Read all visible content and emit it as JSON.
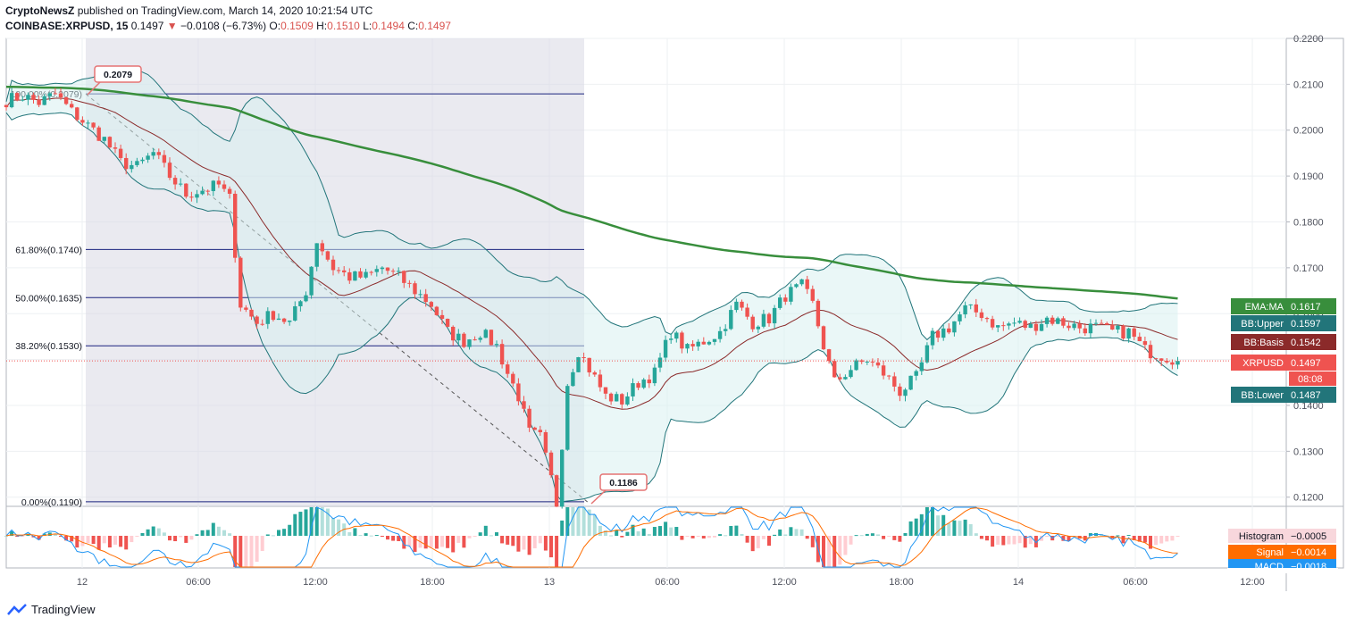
{
  "header": {
    "publisher": "CryptoNewsZ",
    "published_text": "published on TradingView.com, March 14, 2020 10:21:54 UTC",
    "symbol": "COINBASE:XRPUSD, 15",
    "last": "0.1497",
    "change": "−0.0108 (−6.73%)",
    "o_label": "O:",
    "o": "0.1509",
    "h_label": "H:",
    "h": "0.1510",
    "l_label": "L:",
    "l": "0.1494",
    "c_label": "C:",
    "c": "0.1497"
  },
  "footer": {
    "brand": "TradingView"
  },
  "chart_data": {
    "type": "candlestick",
    "symbol": "COINBASE:XRPUSD",
    "interval": "15",
    "x_ticks": [
      "12",
      "06:00",
      "12:00",
      "18:00",
      "13",
      "06:00",
      "12:00",
      "18:00",
      "14",
      "06:00",
      "12:00"
    ],
    "y_ticks": [
      "0.2200",
      "0.2100",
      "0.2000",
      "0.1900",
      "0.1800",
      "0.1700",
      "0.1600",
      "0.1500",
      "0.1400",
      "0.1300",
      "0.1200"
    ],
    "ylim": [
      0.118,
      0.22
    ],
    "price_path": [
      [
        0,
        0.2065
      ],
      [
        3,
        0.2075
      ],
      [
        6,
        0.206
      ],
      [
        9,
        0.2079
      ],
      [
        12,
        0.204
      ],
      [
        15,
        0.201
      ],
      [
        18,
        0.198
      ],
      [
        21,
        0.193
      ],
      [
        24,
        0.192
      ],
      [
        27,
        0.195
      ],
      [
        30,
        0.19
      ],
      [
        33,
        0.186
      ],
      [
        36,
        0.187
      ],
      [
        39,
        0.188
      ],
      [
        41,
        0.185
      ],
      [
        43,
        0.162
      ],
      [
        46,
        0.158
      ],
      [
        49,
        0.16
      ],
      [
        52,
        0.158
      ],
      [
        55,
        0.165
      ],
      [
        57,
        0.176
      ],
      [
        60,
        0.17
      ],
      [
        63,
        0.168
      ],
      [
        66,
        0.168
      ],
      [
        69,
        0.17
      ],
      [
        72,
        0.168
      ],
      [
        75,
        0.165
      ],
      [
        78,
        0.162
      ],
      [
        81,
        0.156
      ],
      [
        84,
        0.154
      ],
      [
        87,
        0.156
      ],
      [
        90,
        0.153
      ],
      [
        92,
        0.147
      ],
      [
        94,
        0.142
      ],
      [
        96,
        0.134
      ],
      [
        98,
        0.133
      ],
      [
        100,
        0.124
      ],
      [
        101,
        0.1186
      ],
      [
        103,
        0.145
      ],
      [
        105,
        0.152
      ],
      [
        107,
        0.148
      ],
      [
        110,
        0.142
      ],
      [
        113,
        0.141
      ],
      [
        116,
        0.145
      ],
      [
        119,
        0.147
      ],
      [
        122,
        0.156
      ],
      [
        125,
        0.152
      ],
      [
        128,
        0.154
      ],
      [
        131,
        0.156
      ],
      [
        134,
        0.162
      ],
      [
        137,
        0.158
      ],
      [
        140,
        0.159
      ],
      [
        143,
        0.164
      ],
      [
        146,
        0.166
      ],
      [
        148,
        0.162
      ],
      [
        150,
        0.153
      ],
      [
        152,
        0.145
      ],
      [
        155,
        0.148
      ],
      [
        158,
        0.15
      ],
      [
        161,
        0.147
      ],
      [
        164,
        0.143
      ],
      [
        167,
        0.146
      ],
      [
        170,
        0.155
      ],
      [
        173,
        0.157
      ],
      [
        176,
        0.161
      ],
      [
        179,
        0.16
      ],
      [
        182,
        0.157
      ],
      [
        185,
        0.158
      ],
      [
        188,
        0.157
      ],
      [
        191,
        0.159
      ],
      [
        194,
        0.158
      ],
      [
        197,
        0.157
      ],
      [
        200,
        0.157
      ],
      [
        203,
        0.156
      ],
      [
        206,
        0.156
      ],
      [
        209,
        0.152
      ],
      [
        212,
        0.151
      ],
      [
        215,
        0.1497
      ]
    ],
    "series": [
      {
        "name": "EMA:MA",
        "value": "0.1617",
        "color": "#388e3c"
      },
      {
        "name": "BB:Upper",
        "value": "0.1597",
        "color": "#22757a"
      },
      {
        "name": "BB:Basis",
        "value": "0.1542",
        "color": "#8b2a2a"
      },
      {
        "name": "XRPUSD",
        "value": "0.1497",
        "color": "#ef5350"
      },
      {
        "name": "BB:Lower",
        "value": "0.1487",
        "color": "#22757a"
      }
    ],
    "countdown": "08:08",
    "callouts": {
      "high": "0.2079",
      "low": "0.1186"
    },
    "fib_levels": [
      {
        "label": "100.00%(0.2079)",
        "price": 0.2079
      },
      {
        "label": "61.80%(0.1740)",
        "price": 0.174
      },
      {
        "label": "50.00%(0.1635)",
        "price": 0.1635
      },
      {
        "label": "38.20%(0.1530)",
        "price": 0.153
      },
      {
        "label": "0.00%(0.1190)",
        "price": 0.119
      }
    ],
    "macd": [
      {
        "name": "Histogram",
        "value": "−0.0005",
        "color": "#f8d7dc"
      },
      {
        "name": "Signal",
        "value": "−0.0014",
        "color": "#ff6d00"
      },
      {
        "name": "MACD",
        "value": "−0.0018",
        "color": "#2196f3"
      }
    ]
  }
}
